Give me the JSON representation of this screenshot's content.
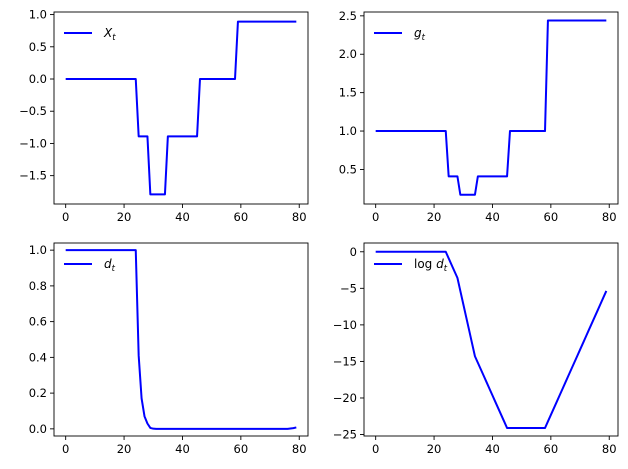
{
  "figure": {
    "background": "#ffffff"
  },
  "chart_data": [
    {
      "type": "line",
      "x_start": 0,
      "x_step": 1,
      "xlim": [
        -4,
        83
      ],
      "ylim": [
        -1.94,
        1.04
      ],
      "xticks": [
        0,
        20,
        40,
        60,
        80
      ],
      "yticks": [
        -1.5,
        -1.0,
        -0.5,
        0.0,
        0.5,
        1.0
      ],
      "ytick_labels": [
        "−1.5",
        "−1.0",
        "−0.5",
        "0.0",
        "0.5",
        "1.0"
      ],
      "grid": false,
      "legend_position": "upper-left",
      "series": [
        {
          "name_main": "X",
          "name_sub": "t",
          "color": "#0000ff",
          "values": [
            0,
            0,
            0,
            0,
            0,
            0,
            0,
            0,
            0,
            0,
            0,
            0,
            0,
            0,
            0,
            0,
            0,
            0,
            0,
            0,
            0,
            0,
            0,
            0,
            0,
            -0.89,
            -0.89,
            -0.89,
            -0.89,
            -1.79,
            -1.79,
            -1.79,
            -1.79,
            -1.79,
            -1.79,
            -0.89,
            -0.89,
            -0.89,
            -0.89,
            -0.89,
            -0.89,
            -0.89,
            -0.89,
            -0.89,
            -0.89,
            -0.89,
            0,
            0,
            0,
            0,
            0,
            0,
            0,
            0,
            0,
            0,
            0,
            0,
            0,
            0.89,
            0.89,
            0.89,
            0.89,
            0.89,
            0.89,
            0.89,
            0.89,
            0.89,
            0.89,
            0.89,
            0.89,
            0.89,
            0.89,
            0.89,
            0.89,
            0.89,
            0.89,
            0.89,
            0.89,
            0.89
          ]
        }
      ]
    },
    {
      "type": "line",
      "x_start": 0,
      "x_step": 1,
      "xlim": [
        -4,
        83
      ],
      "ylim": [
        0.05,
        2.55
      ],
      "xticks": [
        0,
        20,
        40,
        60,
        80
      ],
      "yticks": [
        0.5,
        1.0,
        1.5,
        2.0,
        2.5
      ],
      "ytick_labels": [
        "0.5",
        "1.0",
        "1.5",
        "2.0",
        "2.5"
      ],
      "grid": false,
      "legend_position": "upper-left",
      "series": [
        {
          "name_main": "g",
          "name_sub": "t",
          "color": "#0000ff",
          "values": [
            1,
            1,
            1,
            1,
            1,
            1,
            1,
            1,
            1,
            1,
            1,
            1,
            1,
            1,
            1,
            1,
            1,
            1,
            1,
            1,
            1,
            1,
            1,
            1,
            1,
            0.41,
            0.41,
            0.41,
            0.41,
            0.17,
            0.17,
            0.17,
            0.17,
            0.17,
            0.17,
            0.41,
            0.41,
            0.41,
            0.41,
            0.41,
            0.41,
            0.41,
            0.41,
            0.41,
            0.41,
            0.41,
            1,
            1,
            1,
            1,
            1,
            1,
            1,
            1,
            1,
            1,
            1,
            1,
            1,
            2.44,
            2.44,
            2.44,
            2.44,
            2.44,
            2.44,
            2.44,
            2.44,
            2.44,
            2.44,
            2.44,
            2.44,
            2.44,
            2.44,
            2.44,
            2.44,
            2.44,
            2.44,
            2.44,
            2.44,
            2.44
          ]
        }
      ]
    },
    {
      "type": "line",
      "x_start": 0,
      "x_step": 1,
      "xlim": [
        -4,
        83
      ],
      "ylim": [
        -0.04,
        1.04
      ],
      "xticks": [
        0,
        20,
        40,
        60,
        80
      ],
      "yticks": [
        0.0,
        0.2,
        0.4,
        0.6,
        0.8,
        1.0
      ],
      "ytick_labels": [
        "0.0",
        "0.2",
        "0.4",
        "0.6",
        "0.8",
        "1.0"
      ],
      "grid": false,
      "legend_position": "upper-left",
      "series": [
        {
          "name_main": "d",
          "name_sub": "t",
          "color": "#0000ff",
          "values": [
            1,
            1,
            1,
            1,
            1,
            1,
            1,
            1,
            1,
            1,
            1,
            1,
            1,
            1,
            1,
            1,
            1,
            1,
            1,
            1,
            1,
            1,
            1,
            1,
            1,
            0.41,
            0.17,
            0.07,
            0.03,
            0.005,
            0.001,
            0,
            0,
            0,
            0,
            0,
            0,
            0,
            0,
            0,
            0,
            0,
            0,
            0,
            0,
            0,
            0,
            0,
            0,
            0,
            0,
            0,
            0,
            0,
            0,
            0,
            0,
            0,
            0,
            0,
            0,
            0,
            0,
            0,
            0,
            0,
            0,
            0,
            0,
            0,
            0,
            0,
            0,
            0,
            0,
            0,
            0,
            0.002,
            0.004,
            0.008
          ]
        }
      ]
    },
    {
      "type": "line",
      "x_start": 0,
      "x_step": 1,
      "xlim": [
        -4,
        83
      ],
      "ylim": [
        -25.2,
        1.2
      ],
      "xticks": [
        0,
        20,
        40,
        60,
        80
      ],
      "yticks": [
        0,
        -5,
        -10,
        -15,
        -20,
        -25
      ],
      "ytick_labels": [
        "0",
        "−5",
        "−10",
        "−15",
        "−20",
        "−25"
      ],
      "grid": false,
      "legend_position": "upper-left",
      "series": [
        {
          "name_main": "log d",
          "name_sub": "t",
          "color": "#0000ff",
          "values": [
            0,
            0,
            0,
            0,
            0,
            0,
            0,
            0,
            0,
            0,
            0,
            0,
            0,
            0,
            0,
            0,
            0,
            0,
            0,
            0,
            0,
            0,
            0,
            0,
            0,
            -0.89,
            -1.79,
            -2.68,
            -3.57,
            -5.36,
            -7.14,
            -8.93,
            -10.71,
            -12.5,
            -14.29,
            -15.18,
            -16.07,
            -16.96,
            -17.86,
            -18.75,
            -19.64,
            -20.54,
            -21.43,
            -22.32,
            -23.21,
            -24.11,
            -24.11,
            -24.11,
            -24.11,
            -24.11,
            -24.11,
            -24.11,
            -24.11,
            -24.11,
            -24.11,
            -24.11,
            -24.11,
            -24.11,
            -24.11,
            -23.21,
            -22.32,
            -21.43,
            -20.54,
            -19.64,
            -18.75,
            -17.86,
            -16.96,
            -16.07,
            -15.18,
            -14.29,
            -13.39,
            -12.5,
            -11.61,
            -10.71,
            -9.82,
            -8.93,
            -8.04,
            -7.14,
            -6.25,
            -5.36
          ]
        }
      ]
    }
  ]
}
